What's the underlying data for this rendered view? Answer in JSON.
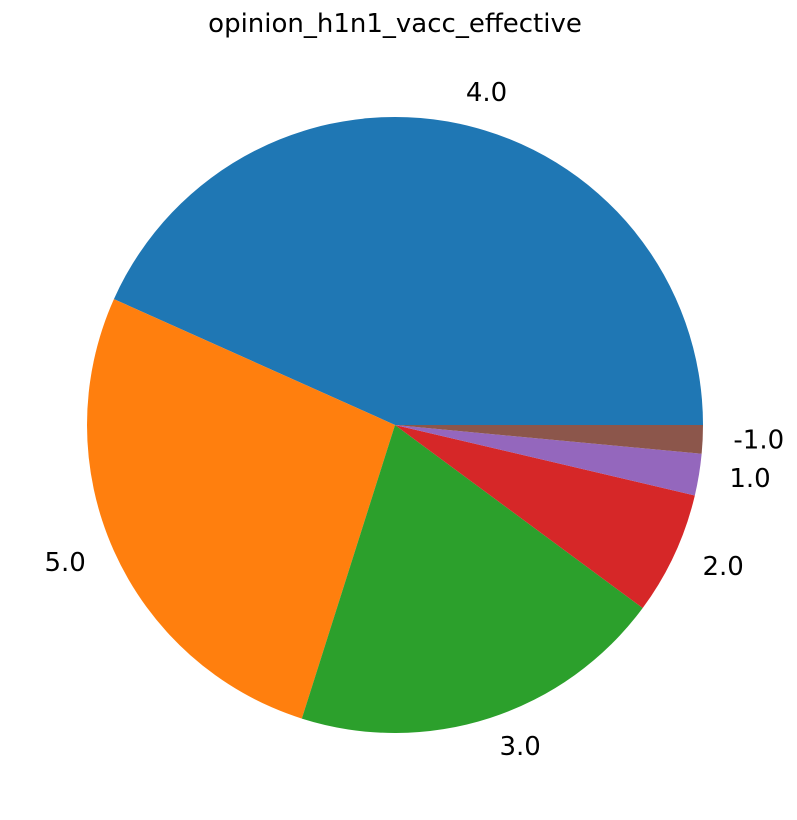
{
  "chart_data": {
    "type": "pie",
    "title": "opinion_h1n1_vacc_effective",
    "categories": [
      "4.0",
      "5.0",
      "3.0",
      "2.0",
      "1.0",
      "-1.0"
    ],
    "values": [
      43.6,
      27.0,
      19.9,
      6.5,
      2.2,
      1.5
    ],
    "colors": [
      "#1f77b4",
      "#ff7f0e",
      "#2ca02c",
      "#d62728",
      "#9467bd",
      "#8c564b"
    ],
    "start_angle_deg": 0,
    "direction": "counterclockwise"
  }
}
